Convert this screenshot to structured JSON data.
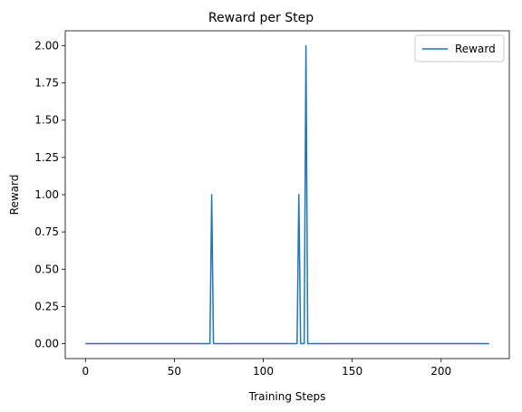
{
  "chart_data": {
    "type": "line",
    "title": "Reward per Step",
    "xlabel": "Training Steps",
    "ylabel": "Reward",
    "xlim": [
      -11.35,
      238.35
    ],
    "ylim": [
      -0.1,
      2.1
    ],
    "xticks": [
      0,
      50,
      100,
      150,
      200
    ],
    "yticks": [
      0.0,
      0.25,
      0.5,
      0.75,
      1.0,
      1.25,
      1.5,
      1.75,
      2.0
    ],
    "xtick_labels": [
      "0",
      "50",
      "100",
      "150",
      "200"
    ],
    "ytick_labels": [
      "0.00",
      "0.25",
      "0.50",
      "0.75",
      "1.00",
      "1.25",
      "1.50",
      "1.75",
      "2.00"
    ],
    "grid": false,
    "legend_position": "top-right",
    "series": [
      {
        "name": "Reward",
        "color": "#1f77b4",
        "x": [
          0,
          70,
          71,
          72,
          119,
          120,
          121,
          123,
          124,
          125,
          227
        ],
        "y": [
          0,
          0,
          1,
          0,
          0,
          1,
          0,
          0,
          2,
          0,
          0
        ]
      }
    ]
  }
}
